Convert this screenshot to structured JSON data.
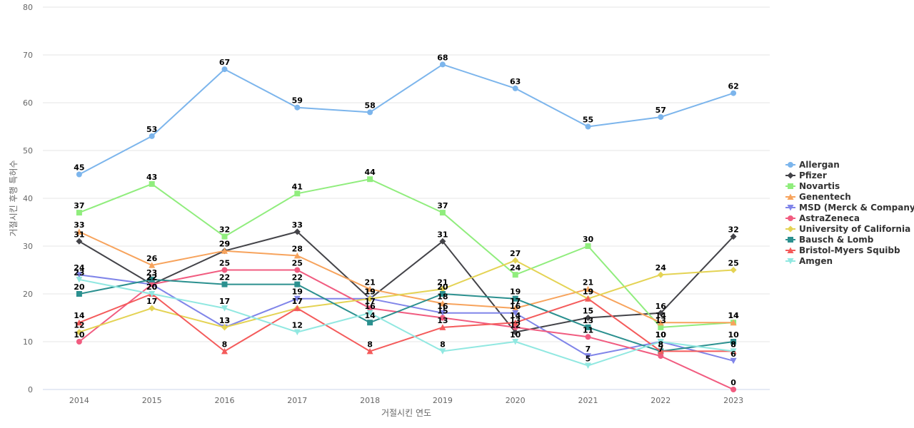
{
  "chart_data": {
    "type": "line",
    "title": "",
    "xlabel": "거절시킨 연도",
    "ylabel": "거절시킨 후행 특허수",
    "x": [
      "2014",
      "2015",
      "2016",
      "2017",
      "2018",
      "2019",
      "2020",
      "2021",
      "2022",
      "2023"
    ],
    "ylim": [
      0,
      80
    ],
    "yticks": [
      0,
      10,
      20,
      30,
      40,
      50,
      60,
      70,
      80
    ],
    "grid": true,
    "legend_position": "right",
    "series": [
      {
        "name": "Allergan",
        "color": "#7cb5ec",
        "marker": "circle",
        "values": [
          45,
          53,
          67,
          59,
          58,
          68,
          63,
          55,
          57,
          62
        ]
      },
      {
        "name": "Pfizer",
        "color": "#434348",
        "marker": "diamond",
        "values": [
          31,
          22,
          29,
          33,
          19,
          31,
          12,
          15,
          16,
          32
        ]
      },
      {
        "name": "Novartis",
        "color": "#90ed7d",
        "marker": "square",
        "values": [
          37,
          43,
          32,
          41,
          44,
          37,
          24,
          30,
          13,
          14
        ]
      },
      {
        "name": "Genentech",
        "color": "#f7a35c",
        "marker": "triangle",
        "values": [
          33,
          26,
          29,
          28,
          21,
          18,
          17,
          21,
          14,
          14
        ]
      },
      {
        "name": "MSD (Merck & Company)",
        "color": "#8085e9",
        "marker": "triangle-down",
        "values": [
          24,
          22,
          13,
          19,
          19,
          16,
          16,
          7,
          10,
          6
        ]
      },
      {
        "name": "AstraZeneca",
        "color": "#f15c80",
        "marker": "circle",
        "values": [
          10,
          22,
          25,
          25,
          17,
          15,
          13,
          11,
          7,
          0
        ]
      },
      {
        "name": "University of California",
        "color": "#e4d354",
        "marker": "diamond",
        "values": [
          12,
          17,
          13,
          17,
          19,
          21,
          27,
          19,
          24,
          25
        ]
      },
      {
        "name": "Bausch & Lomb",
        "color": "#2b908f",
        "marker": "square",
        "values": [
          20,
          23,
          22,
          22,
          14,
          20,
          19,
          13,
          8,
          10
        ]
      },
      {
        "name": "Bristol-Myers Squibb",
        "color": "#f45b5b",
        "marker": "triangle",
        "values": [
          14,
          20,
          8,
          17,
          8,
          13,
          14,
          19,
          8,
          8
        ]
      },
      {
        "name": "Amgen",
        "color": "#91e8e1",
        "marker": "triangle-down",
        "values": [
          23,
          20,
          17,
          12,
          16,
          8,
          10,
          5,
          10,
          8
        ]
      }
    ]
  }
}
